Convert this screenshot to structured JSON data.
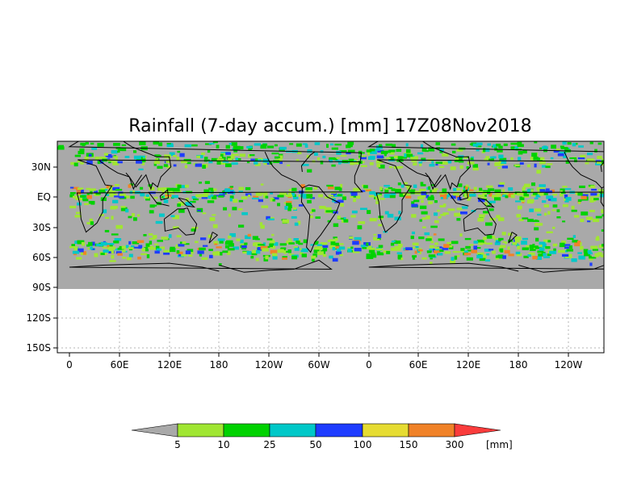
{
  "title": "Rainfall (7-day accum.) [mm] 17Z08Nov2018",
  "y_ticks": [
    "30N",
    "EQ",
    "30S",
    "60S",
    "90S",
    "120S",
    "150S"
  ],
  "x_ticks": [
    "0",
    "60E",
    "120E",
    "180",
    "120W",
    "60W",
    "0",
    "60E",
    "120E",
    "180",
    "120W"
  ],
  "colorbar": {
    "unit": "[mm]",
    "labels": [
      "5",
      "10",
      "25",
      "50",
      "100",
      "150",
      "300"
    ],
    "colors": [
      "#a9a9a9",
      "#a0e632",
      "#00d200",
      "#00c8c8",
      "#1e3cff",
      "#e6dc32",
      "#f08228",
      "#fa3c3c"
    ]
  },
  "colors": {
    "no_rain": "#a9a9a9",
    "coast": "#000000",
    "grid": "#b4b4b4"
  }
}
